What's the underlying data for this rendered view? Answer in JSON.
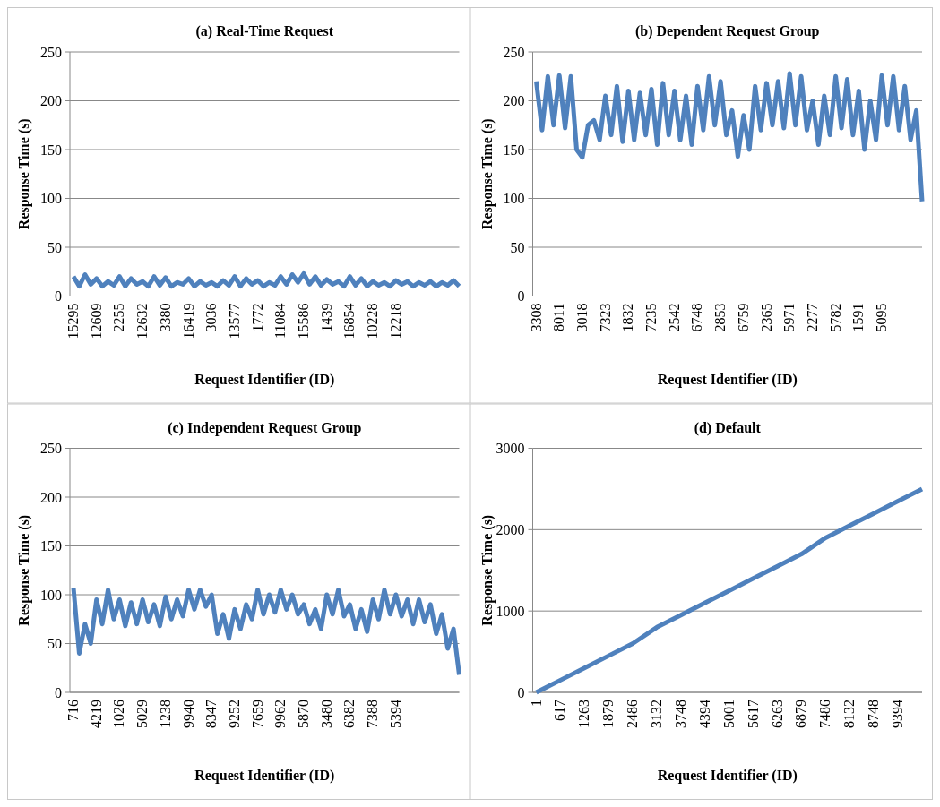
{
  "chart_data": [
    {
      "type": "line",
      "title": "(a) Real-Time Request",
      "xlabel": "Request Identifier (ID)",
      "ylabel": "Response Time (s)",
      "ylim": [
        0,
        250
      ],
      "yticks": [
        0,
        50,
        100,
        150,
        200,
        250
      ],
      "grid": "y",
      "marker": "none",
      "line_style": "solid",
      "categories": [
        "15295",
        null,
        null,
        null,
        "12609",
        null,
        null,
        null,
        "2255",
        null,
        null,
        null,
        "12632",
        null,
        null,
        null,
        "3380",
        null,
        null,
        null,
        "16419",
        null,
        null,
        null,
        "3036",
        null,
        null,
        null,
        "13577",
        null,
        null,
        null,
        "1772",
        null,
        null,
        null,
        "11084",
        null,
        null,
        null,
        "15586",
        null,
        null,
        null,
        "1439",
        null,
        null,
        null,
        "16854",
        null,
        null,
        null,
        "10228",
        null,
        null,
        null,
        "12218",
        null,
        null,
        null,
        null,
        null,
        null,
        null,
        null,
        null,
        null,
        null
      ],
      "series": [
        {
          "color": "#4f81bd",
          "values": [
            20,
            10,
            22,
            12,
            18,
            10,
            15,
            11,
            20,
            10,
            18,
            12,
            15,
            10,
            20,
            11,
            19,
            10,
            14,
            12,
            18,
            10,
            15,
            11,
            14,
            10,
            16,
            11,
            20,
            10,
            18,
            12,
            16,
            10,
            14,
            11,
            20,
            12,
            22,
            14,
            23,
            12,
            20,
            11,
            17,
            12,
            15,
            10,
            20,
            11,
            18,
            10,
            15,
            11,
            14,
            10,
            16,
            12,
            15,
            10,
            14,
            11,
            15,
            10,
            14,
            11,
            16,
            10
          ]
        }
      ]
    },
    {
      "type": "line",
      "title": "(b) Dependent Request Group",
      "xlabel": "Request Identifier (ID)",
      "ylabel": "Response Time (s)",
      "ylim": [
        0,
        250
      ],
      "yticks": [
        0,
        50,
        100,
        150,
        200,
        250
      ],
      "grid": "y",
      "marker": "none",
      "line_style": "solid",
      "categories": [
        "3308",
        null,
        null,
        null,
        "8011",
        null,
        null,
        null,
        "3018",
        null,
        null,
        null,
        "7323",
        null,
        null,
        null,
        "1832",
        null,
        null,
        null,
        "7235",
        null,
        null,
        null,
        "2542",
        null,
        null,
        null,
        "6748",
        null,
        null,
        null,
        "2853",
        null,
        null,
        null,
        "6759",
        null,
        null,
        null,
        "2365",
        null,
        null,
        null,
        "5971",
        null,
        null,
        null,
        "2277",
        null,
        null,
        null,
        "5782",
        null,
        null,
        null,
        "1591",
        null,
        null,
        null,
        "5095",
        null,
        null,
        null,
        null,
        null,
        null,
        null
      ],
      "series": [
        {
          "color": "#4f81bd",
          "values": [
            220,
            170,
            225,
            175,
            226,
            172,
            225,
            150,
            142,
            175,
            180,
            160,
            205,
            165,
            215,
            158,
            210,
            160,
            208,
            165,
            212,
            155,
            218,
            165,
            210,
            160,
            205,
            155,
            215,
            170,
            225,
            175,
            220,
            165,
            190,
            143,
            185,
            150,
            215,
            170,
            218,
            175,
            220,
            172,
            228,
            175,
            225,
            170,
            200,
            155,
            205,
            165,
            225,
            172,
            222,
            165,
            210,
            150,
            200,
            160,
            226,
            175,
            225,
            170,
            215,
            160,
            190,
            97
          ]
        }
      ]
    },
    {
      "type": "line",
      "title": "(c) Independent Request Group",
      "xlabel": "Request Identifier (ID)",
      "ylabel": "Response Time (s)",
      "ylim": [
        0,
        250
      ],
      "yticks": [
        0,
        50,
        100,
        150,
        200,
        250
      ],
      "grid": "y",
      "marker": "none",
      "line_style": "solid",
      "categories": [
        "716",
        null,
        null,
        null,
        "4219",
        null,
        null,
        null,
        "1026",
        null,
        null,
        null,
        "5029",
        null,
        null,
        null,
        "1238",
        null,
        null,
        null,
        "9940",
        null,
        null,
        null,
        "8347",
        null,
        null,
        null,
        "9252",
        null,
        null,
        null,
        "7659",
        null,
        null,
        null,
        "9962",
        null,
        null,
        null,
        "5870",
        null,
        null,
        null,
        "3480",
        null,
        null,
        null,
        "6382",
        null,
        null,
        null,
        "7388",
        null,
        null,
        null,
        "5394",
        null,
        null,
        null,
        null,
        null,
        null,
        null,
        null,
        null,
        null,
        null
      ],
      "series": [
        {
          "color": "#4f81bd",
          "values": [
            107,
            40,
            70,
            50,
            95,
            70,
            105,
            75,
            95,
            68,
            92,
            70,
            95,
            72,
            90,
            68,
            98,
            75,
            95,
            78,
            105,
            85,
            105,
            88,
            100,
            60,
            80,
            55,
            85,
            65,
            90,
            75,
            105,
            80,
            100,
            82,
            105,
            85,
            100,
            80,
            90,
            70,
            85,
            65,
            100,
            80,
            105,
            78,
            90,
            65,
            85,
            62,
            95,
            75,
            105,
            80,
            100,
            78,
            95,
            70,
            95,
            72,
            90,
            60,
            80,
            45,
            65,
            18
          ]
        }
      ]
    },
    {
      "type": "line",
      "title": "(d) Default",
      "xlabel": "Request Identifier (ID)",
      "ylabel": "Response Time (s)",
      "ylim": [
        0,
        3000
      ],
      "yticks": [
        0,
        1000,
        2000,
        3000
      ],
      "grid": "y",
      "marker": "none",
      "line_style": "solid",
      "categories": [
        "1",
        "617",
        "1263",
        "1879",
        "2486",
        "3132",
        "3748",
        "4394",
        "5001",
        "5617",
        "6263",
        "6879",
        "7486",
        "8132",
        "8748",
        "9394",
        null
      ],
      "series": [
        {
          "color": "#4f81bd",
          "values": [
            0,
            150,
            300,
            450,
            600,
            800,
            950,
            1100,
            1250,
            1400,
            1550,
            1700,
            1900,
            2050,
            2200,
            2350,
            2500
          ]
        }
      ]
    }
  ]
}
